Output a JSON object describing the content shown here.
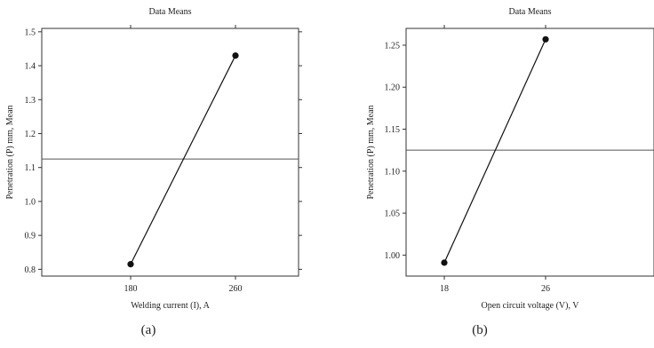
{
  "panels": [
    {
      "label": "(a)",
      "chart_data": {
        "type": "line",
        "title": "Data Means",
        "xlabel": "Welding current (I), A",
        "ylabel": "Penetration (P) mm, Mean",
        "categories": [
          "180",
          "260"
        ],
        "values": [
          0.815,
          1.43
        ],
        "reference_line": 1.125,
        "ylim": [
          0.78,
          1.51
        ],
        "yticks": [
          "0.8",
          "0.9",
          "1.0",
          "1.1",
          "1.2",
          "1.3",
          "1.4",
          "1.5"
        ],
        "grid": false,
        "legend": "none"
      }
    },
    {
      "label": "(b)",
      "chart_data": {
        "type": "line",
        "title": "Data Means",
        "xlabel": "Open circuit voltage (V), V",
        "ylabel": "Penetration (P) mm, Mean",
        "categories": [
          "18",
          "26"
        ],
        "values": [
          0.991,
          1.257
        ],
        "reference_line": 1.125,
        "ylim": [
          0.975,
          1.27
        ],
        "yticks": [
          "1.00",
          "1.05",
          "1.10",
          "1.15",
          "1.20",
          "1.25"
        ],
        "grid": false,
        "legend": "none"
      }
    }
  ]
}
